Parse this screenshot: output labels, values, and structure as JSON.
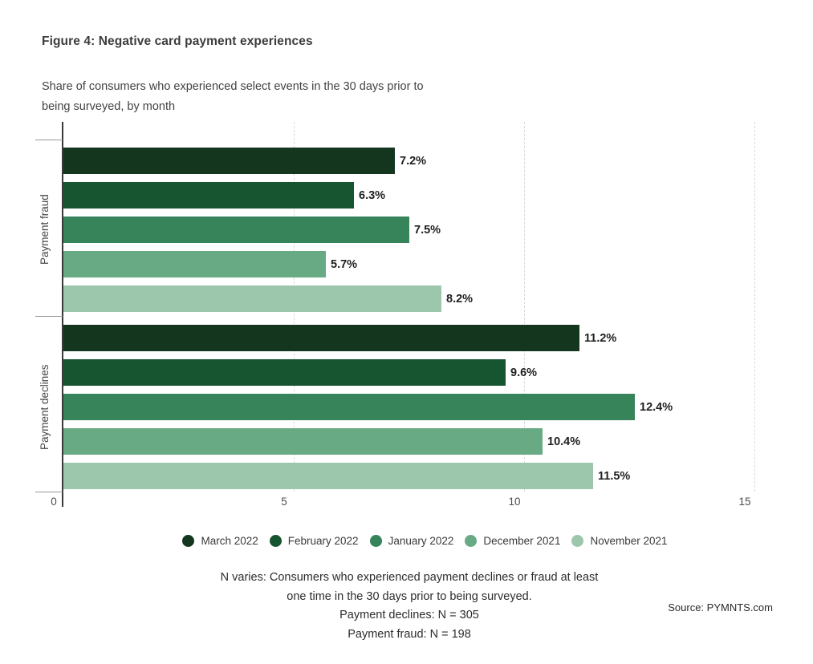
{
  "chart_data": {
    "type": "bar",
    "orientation": "horizontal",
    "title": "Figure 4: Negative card payment experiences",
    "subtitle_lines": [
      "Share of consumers who experienced select events in the 30 days prior to",
      "being surveyed, by month"
    ],
    "categories": [
      "Payment fraud",
      "Payment declines"
    ],
    "series": [
      {
        "name": "March 2022",
        "color": "#14361f",
        "values": [
          7.2,
          11.2
        ]
      },
      {
        "name": "February 2022",
        "color": "#175531",
        "values": [
          6.3,
          9.6
        ]
      },
      {
        "name": "January 2022",
        "color": "#37835a",
        "values": [
          7.5,
          12.4
        ]
      },
      {
        "name": "December 2021",
        "color": "#68aa84",
        "values": [
          5.7,
          10.4
        ]
      },
      {
        "name": "November 2021",
        "color": "#9dc7ac",
        "values": [
          8.2,
          11.5
        ]
      }
    ],
    "value_labels": [
      [
        "7.2%",
        "6.3%",
        "7.5%",
        "5.7%",
        "8.2%"
      ],
      [
        "11.2%",
        "9.6%",
        "12.4%",
        "10.4%",
        "11.5%"
      ]
    ],
    "xlabel": "",
    "ylabel": "",
    "xlim": [
      0,
      15
    ],
    "x_ticks": [
      "0",
      "5",
      "10",
      "15"
    ],
    "grid": "vertical-dashed",
    "legend_position": "bottom"
  },
  "notes": {
    "lines": [
      "N varies: Consumers who experienced payment declines or fraud at least",
      "one time in the 30 days prior to being surveyed.",
      "Payment declines: N = 305",
      "Payment fraud: N = 198"
    ]
  },
  "source": "Source: PYMNTS.com"
}
